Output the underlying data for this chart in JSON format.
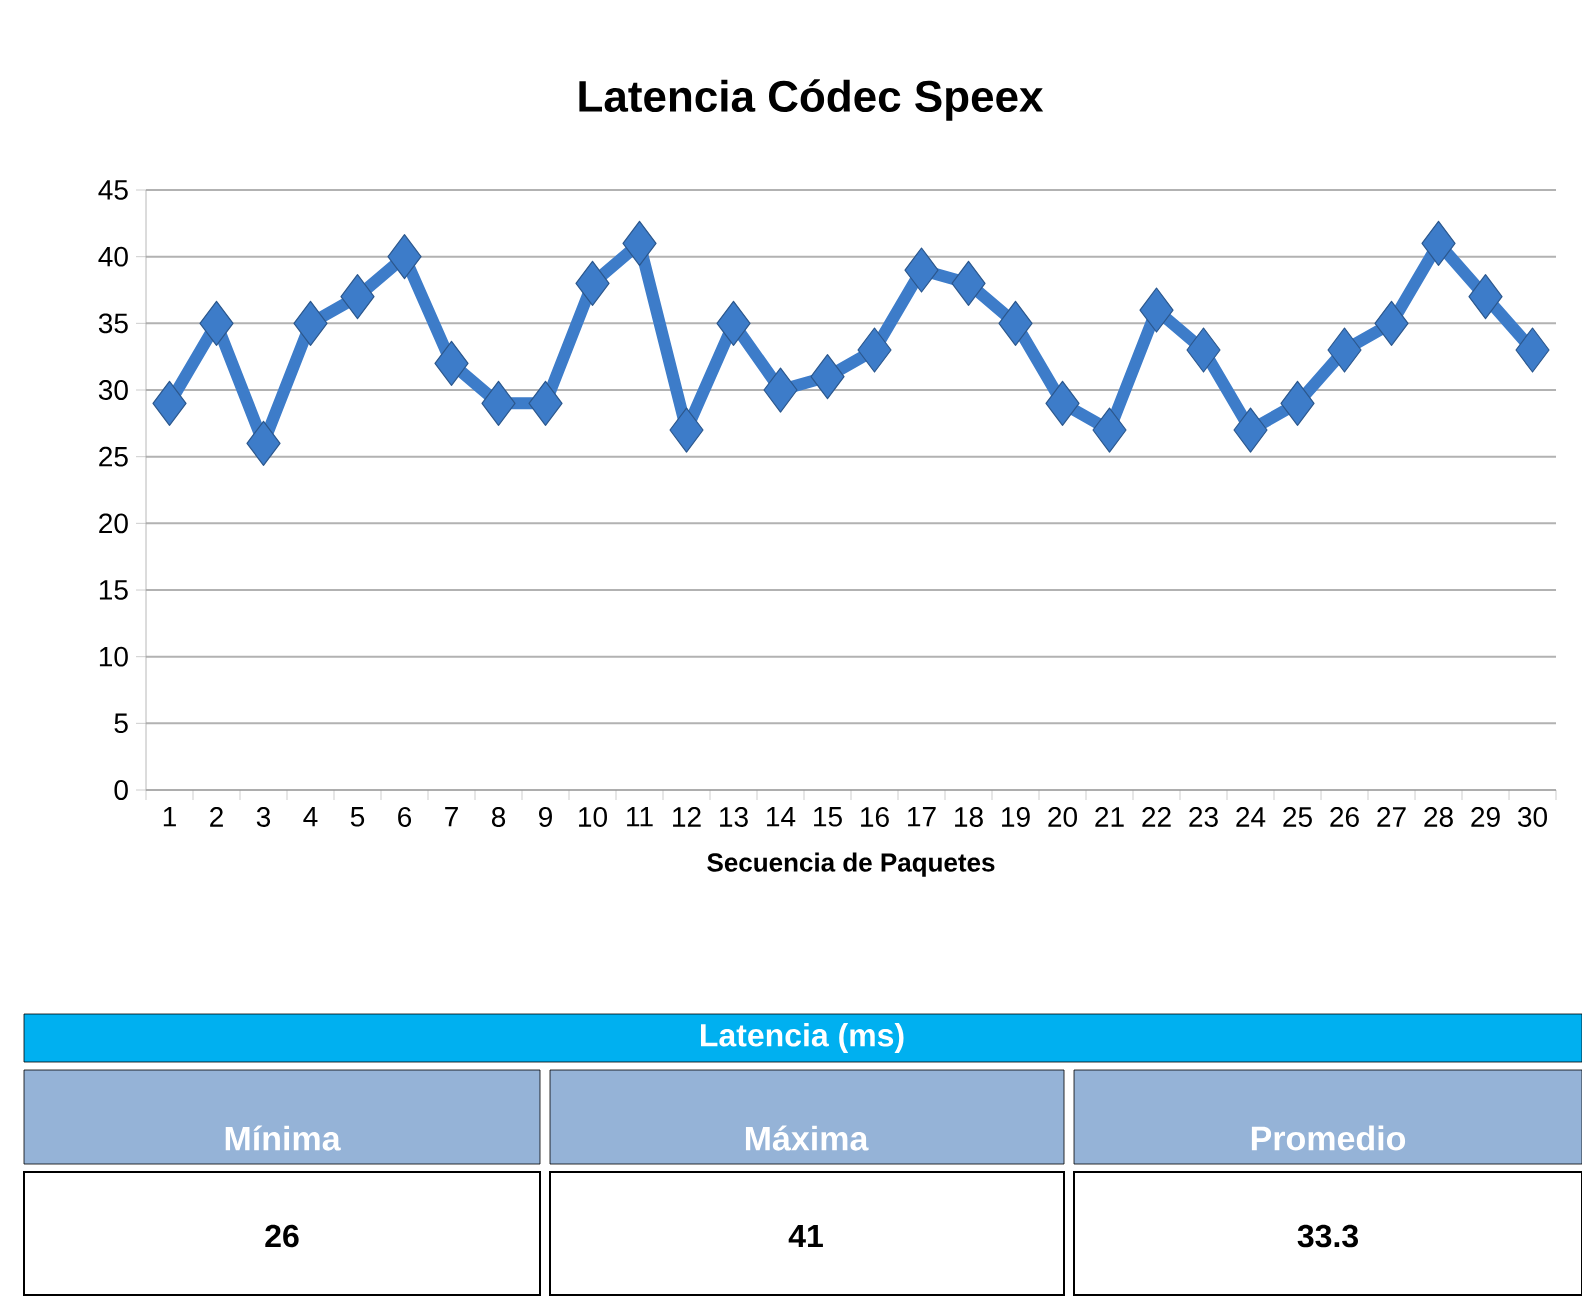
{
  "chart_data": {
    "type": "line",
    "title": "Latencia Códec Speex",
    "xlabel": "Secuencia de Paquetes",
    "categories": [
      "1",
      "2",
      "3",
      "4",
      "5",
      "6",
      "7",
      "8",
      "9",
      "10",
      "11",
      "12",
      "13",
      "14",
      "15",
      "16",
      "17",
      "18",
      "19",
      "20",
      "21",
      "22",
      "23",
      "24",
      "25",
      "26",
      "27",
      "28",
      "29",
      "30"
    ],
    "series": [
      {
        "color": "#3d7cc9",
        "values": [
          29,
          35,
          26,
          35,
          37,
          40,
          32,
          29,
          29,
          38,
          41,
          27,
          35,
          30,
          31,
          33,
          39,
          38,
          35,
          29,
          27,
          36,
          33,
          27,
          29,
          33,
          35,
          41,
          37,
          33
        ]
      }
    ],
    "ylim": [
      0,
      45
    ],
    "yticks": [
      0,
      5,
      10,
      15,
      20,
      25,
      30,
      35,
      40,
      45
    ],
    "grid": "y",
    "marker": "diamond",
    "line_style": "solid",
    "annotations": [
      "Latencia (ms)",
      "Mínima",
      "Máxima",
      "Promedio",
      "26",
      "41",
      "33.3"
    ]
  }
}
